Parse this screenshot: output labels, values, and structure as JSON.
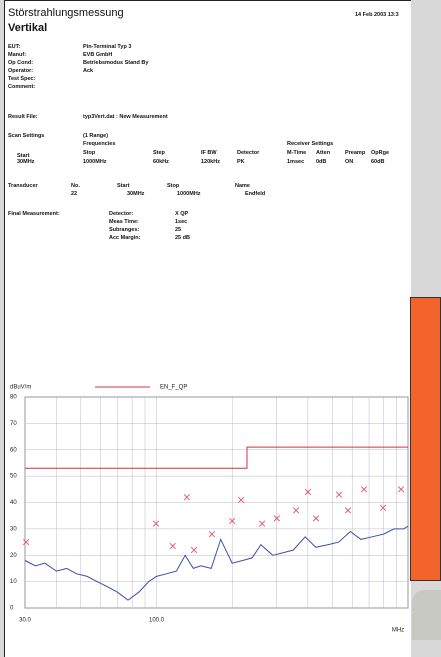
{
  "header": {
    "title": "Störstrahlungsmessung",
    "date": "14 Feb 2003  13:3",
    "subtitle": "Vertikal"
  },
  "fields": [
    {
      "label": "EUT:",
      "value": "Pin-Terminal Typ 3"
    },
    {
      "label": "Manuf:",
      "value": "EVB GmbH"
    },
    {
      "label": "Op Cond:",
      "value": "Betriebsmodus Stand By"
    },
    {
      "label": "Operator:",
      "value": "Ack"
    },
    {
      "label": "Test Spec:",
      "value": ""
    },
    {
      "label": "Comment:",
      "value": ""
    }
  ],
  "result_file": {
    "label": "Result File:",
    "value": "typ3Vert.dat : New Measurement"
  },
  "scan_settings": {
    "label": "Scan Settings",
    "range": "(1 Range)",
    "frequencies": "Frequencies",
    "receiver": "Receiver Settings",
    "headers": [
      "Start",
      "Stop",
      "Step",
      "IF BW",
      "Detector",
      "M-Time",
      "Atten",
      "Preamp",
      "OpRge"
    ],
    "values": [
      "30MHz",
      "1000MHz",
      "60kHz",
      "120kHz",
      "PK",
      "1msec",
      "0dB",
      "ON",
      "60dB"
    ]
  },
  "transducer": {
    "label": "Transducer",
    "headers": [
      "No.",
      "Start",
      "Stop",
      "Name"
    ],
    "values": [
      "22",
      "30MHz",
      "1000MHz",
      "Endfeld"
    ]
  },
  "final": {
    "label": "Final Measurement:",
    "rows": [
      [
        "Detector:",
        "X QP"
      ],
      [
        "Meas Time:",
        "1sec"
      ],
      [
        "Subranges:",
        "25"
      ],
      [
        "Acc Margin:",
        "25 dB"
      ]
    ]
  },
  "chart_data": {
    "type": "line",
    "ylabel": "dBuV/m",
    "xlabel": "MHz",
    "xscale": "log",
    "grid": true,
    "xlim": [
      30,
      1000
    ],
    "ylim": [
      0,
      80
    ],
    "xticks": [
      {
        "value": 30,
        "label": "30.0"
      },
      {
        "value": 40,
        "label": null
      },
      {
        "value": 50,
        "label": null
      },
      {
        "value": 60,
        "label": null
      },
      {
        "value": 70,
        "label": null
      },
      {
        "value": 80,
        "label": null
      },
      {
        "value": 90,
        "label": null
      },
      {
        "value": 100,
        "label": "100.0"
      },
      {
        "value": 200,
        "label": null
      },
      {
        "value": 300,
        "label": null
      },
      {
        "value": 400,
        "label": null
      },
      {
        "value": 500,
        "label": null
      },
      {
        "value": 600,
        "label": null
      },
      {
        "value": 700,
        "label": null
      },
      {
        "value": 800,
        "label": null
      },
      {
        "value": 900,
        "label": null
      },
      {
        "value": 1000,
        "label": null
      }
    ],
    "yticks": [
      0,
      10,
      20,
      30,
      40,
      50,
      60,
      70,
      80
    ],
    "series": [
      {
        "name": "EN_F_QP",
        "color": "#d0343c",
        "x": [
          30,
          229,
          229,
          1000
        ],
        "values": [
          53,
          53,
          61,
          61
        ]
      },
      {
        "color": "#3b4fa6",
        "x": [
          30,
          33,
          36,
          40,
          44,
          48,
          53,
          58,
          64,
          70,
          77,
          85,
          93,
          100,
          110,
          120,
          130,
          140,
          150,
          165,
          180,
          200,
          220,
          240,
          260,
          290,
          320,
          350,
          390,
          430,
          480,
          530,
          590,
          650,
          720,
          800,
          880,
          960,
          1000
        ],
        "values": [
          18,
          16,
          17,
          14,
          15,
          13,
          12,
          10,
          8,
          6,
          3,
          6,
          10,
          12,
          13,
          14,
          20,
          15,
          16,
          15,
          26,
          17,
          18,
          19,
          24,
          20,
          21,
          22,
          27,
          23,
          24,
          25,
          29,
          26,
          27,
          28,
          30,
          30,
          31
        ]
      },
      {
        "type": "scatter",
        "marker": "x",
        "color": "#e0506a",
        "x": [
          30.3,
          99.5,
          116,
          132,
          141,
          166,
          200,
          217,
          263,
          301,
          359,
          400,
          431,
          532,
          577,
          668,
          796,
          938
        ],
        "values": [
          25,
          32,
          23.5,
          42,
          22,
          28,
          33,
          41,
          32,
          34,
          37,
          44,
          34,
          43,
          37,
          45,
          38,
          45
        ]
      }
    ]
  }
}
